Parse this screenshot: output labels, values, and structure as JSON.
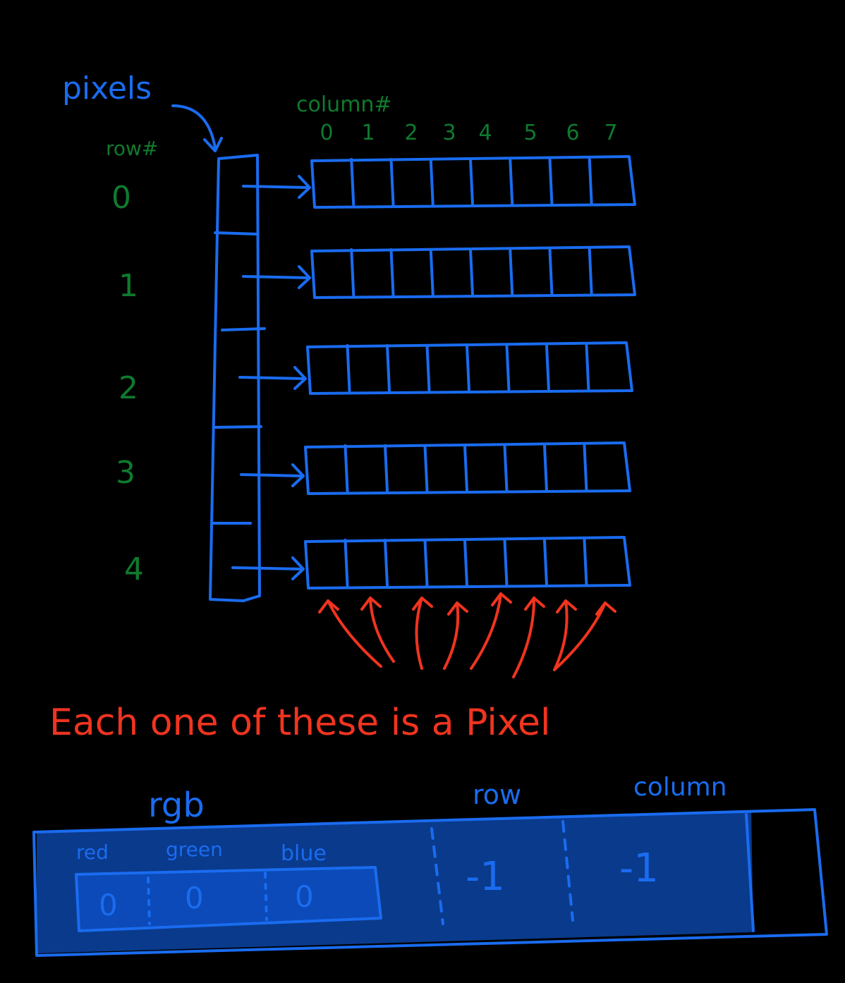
{
  "labels": {
    "pixels": "pixels",
    "column_header": "column#",
    "row_header": "row#",
    "caption": "Each one of these is a Pixel",
    "rgb": "rgb",
    "row": "row",
    "column": "column",
    "red": "red",
    "green": "green",
    "blue": "blue"
  },
  "column_numbers": [
    "0",
    "1",
    "2",
    "3",
    "4",
    "5",
    "6",
    "7"
  ],
  "row_numbers": [
    "0",
    "1",
    "2",
    "3",
    "4"
  ],
  "pixel": {
    "red_value": "0",
    "green_value": "0",
    "blue_value": "0",
    "row_value": "-1",
    "column_value": "-1"
  },
  "colors": {
    "outline": "#1a6cf0",
    "row_labels": "#0f7a2e",
    "caption": "#f0341f",
    "pixel_fill": "#0a3a8c",
    "background": "#000000"
  }
}
